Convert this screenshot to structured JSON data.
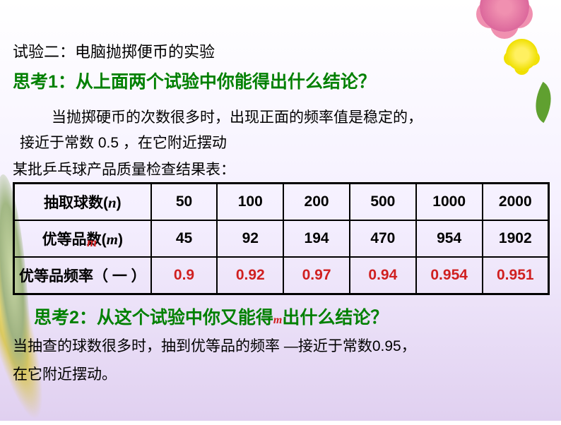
{
  "heading1": "试验二：电脑抛掷便币的实验",
  "think1": "思考1：从上面两个试验中你能得出什么结论？",
  "body1": "当抛掷硬币的次数很多时，出现正面的频率值是稳定的，",
  "body2": "接近于常数 0.5 ，在它附近摆动",
  "tableTitle": "某批乒乓球产品质量检查结果表：",
  "table": {
    "row1": {
      "header": "抽取球数(",
      "headerN": "n",
      "headerEnd": ")",
      "cells": [
        "50",
        "100",
        "200",
        "500",
        "1000",
        "2000"
      ]
    },
    "row2": {
      "header": "优等品数(",
      "headerM": "m",
      "headerEnd": ")",
      "cells": [
        "45",
        "92",
        "194",
        "470",
        "954",
        "1902"
      ]
    },
    "row3": {
      "header": "优等品频率（ 一 ）",
      "cells": [
        "0.9",
        "0.92",
        "0.97",
        "0.94",
        "0.954",
        "0.951"
      ]
    }
  },
  "mLabel": "m",
  "think2a": "思考2：从这个试验中你又能得",
  "think2m": "m",
  "think2b": "出什么结论？",
  "body3a": "当抽查的球数很多时，抽到优等品的频率 ",
  "body3dash": "—",
  "body3b": "接近于常数0.95，",
  "body4": "在它附近摆动。",
  "colors": {
    "green": "#008000",
    "red": "#d02020",
    "black": "#000000"
  }
}
